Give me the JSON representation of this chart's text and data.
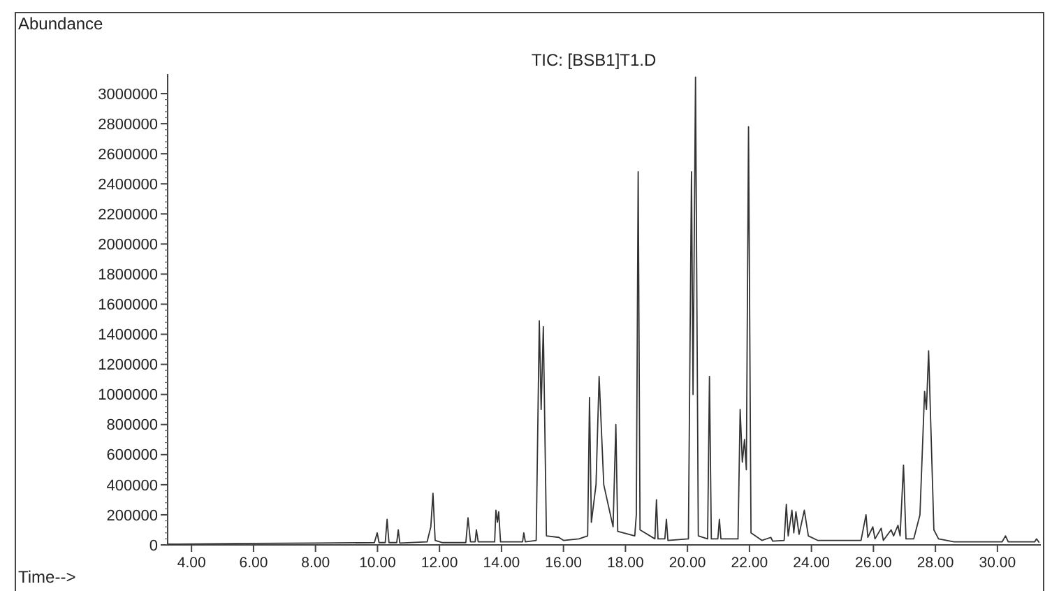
{
  "chart_data": {
    "type": "line",
    "title": "TIC: [BSB1]T1.D",
    "ylabel": "Abundance",
    "xlabel": "Time-->",
    "xlim": [
      3.23,
      31.4
    ],
    "ylim": [
      0,
      3130000
    ],
    "xticks": [
      {
        "value": 4,
        "label": "4.00"
      },
      {
        "value": 6,
        "label": "6.00"
      },
      {
        "value": 8,
        "label": "8.00"
      },
      {
        "value": 10,
        "label": "10.00"
      },
      {
        "value": 12,
        "label": "12.00"
      },
      {
        "value": 14,
        "label": "14.00"
      },
      {
        "value": 16,
        "label": "16.00"
      },
      {
        "value": 18,
        "label": "18.00"
      },
      {
        "value": 20,
        "label": "20.00"
      },
      {
        "value": 22,
        "label": "22.00"
      },
      {
        "value": 24,
        "label": "24.00"
      },
      {
        "value": 26,
        "label": "26.00"
      },
      {
        "value": 28,
        "label": "28.00"
      },
      {
        "value": 30,
        "label": "30.00"
      }
    ],
    "yticks": [
      0,
      200000,
      400000,
      600000,
      800000,
      1000000,
      1200000,
      1400000,
      1600000,
      1800000,
      2000000,
      2200000,
      2400000,
      2600000,
      2800000,
      3000000
    ],
    "marker": "none",
    "line_style": "solid",
    "series": [
      {
        "color": "#333333",
        "x": [
          3.23,
          6.0,
          8.0,
          9.9,
          9.99,
          10.05,
          10.25,
          10.31,
          10.37,
          10.62,
          10.67,
          10.72,
          11.6,
          11.72,
          11.79,
          11.86,
          12.1,
          12.85,
          12.92,
          13.0,
          13.15,
          13.19,
          13.25,
          13.78,
          13.82,
          13.87,
          13.91,
          13.97,
          14.68,
          14.72,
          14.77,
          15.12,
          15.22,
          15.28,
          15.35,
          15.45,
          15.85,
          16.0,
          16.5,
          16.78,
          16.84,
          16.9,
          17.05,
          17.15,
          17.3,
          17.6,
          17.69,
          17.75,
          18.3,
          18.35,
          18.41,
          18.47,
          18.95,
          19.0,
          19.05,
          19.27,
          19.32,
          19.37,
          20.03,
          20.13,
          20.18,
          20.26,
          20.35,
          20.65,
          20.71,
          20.77,
          20.98,
          21.03,
          21.08,
          21.63,
          21.7,
          21.77,
          21.84,
          21.9,
          21.97,
          22.05,
          22.4,
          22.69,
          22.75,
          23.12,
          23.19,
          23.25,
          23.37,
          23.43,
          23.5,
          23.6,
          23.77,
          23.9,
          24.2,
          25.6,
          25.76,
          25.82,
          25.98,
          26.05,
          26.25,
          26.32,
          26.57,
          26.65,
          26.79,
          26.86,
          26.97,
          27.05,
          27.3,
          27.5,
          27.65,
          27.71,
          27.78,
          27.95,
          28.1,
          28.6,
          30.15,
          30.26,
          30.35,
          31.2,
          31.26,
          31.35
        ],
        "values": [
          5000,
          10000,
          12000,
          15000,
          80000,
          15000,
          15000,
          170000,
          15000,
          15000,
          100000,
          12000,
          20000,
          120000,
          343000,
          30000,
          15000,
          15000,
          180000,
          20000,
          20000,
          100000,
          20000,
          20000,
          230000,
          150000,
          220000,
          20000,
          20000,
          80000,
          20000,
          30000,
          1490000,
          900000,
          1450000,
          60000,
          50000,
          30000,
          40000,
          60000,
          980000,
          150000,
          400000,
          1120000,
          400000,
          120000,
          800000,
          90000,
          60000,
          200000,
          2480000,
          100000,
          40000,
          300000,
          40000,
          40000,
          170000,
          30000,
          40000,
          2480000,
          1000000,
          3110000,
          60000,
          40000,
          1120000,
          40000,
          40000,
          170000,
          40000,
          40000,
          900000,
          550000,
          700000,
          500000,
          2780000,
          80000,
          30000,
          50000,
          25000,
          30000,
          270000,
          60000,
          230000,
          80000,
          220000,
          70000,
          230000,
          60000,
          30000,
          30000,
          200000,
          50000,
          120000,
          40000,
          110000,
          30000,
          100000,
          60000,
          130000,
          60000,
          530000,
          40000,
          40000,
          200000,
          1020000,
          900000,
          1290000,
          100000,
          40000,
          20000,
          20000,
          60000,
          20000,
          20000,
          40000,
          15000
        ]
      }
    ]
  }
}
